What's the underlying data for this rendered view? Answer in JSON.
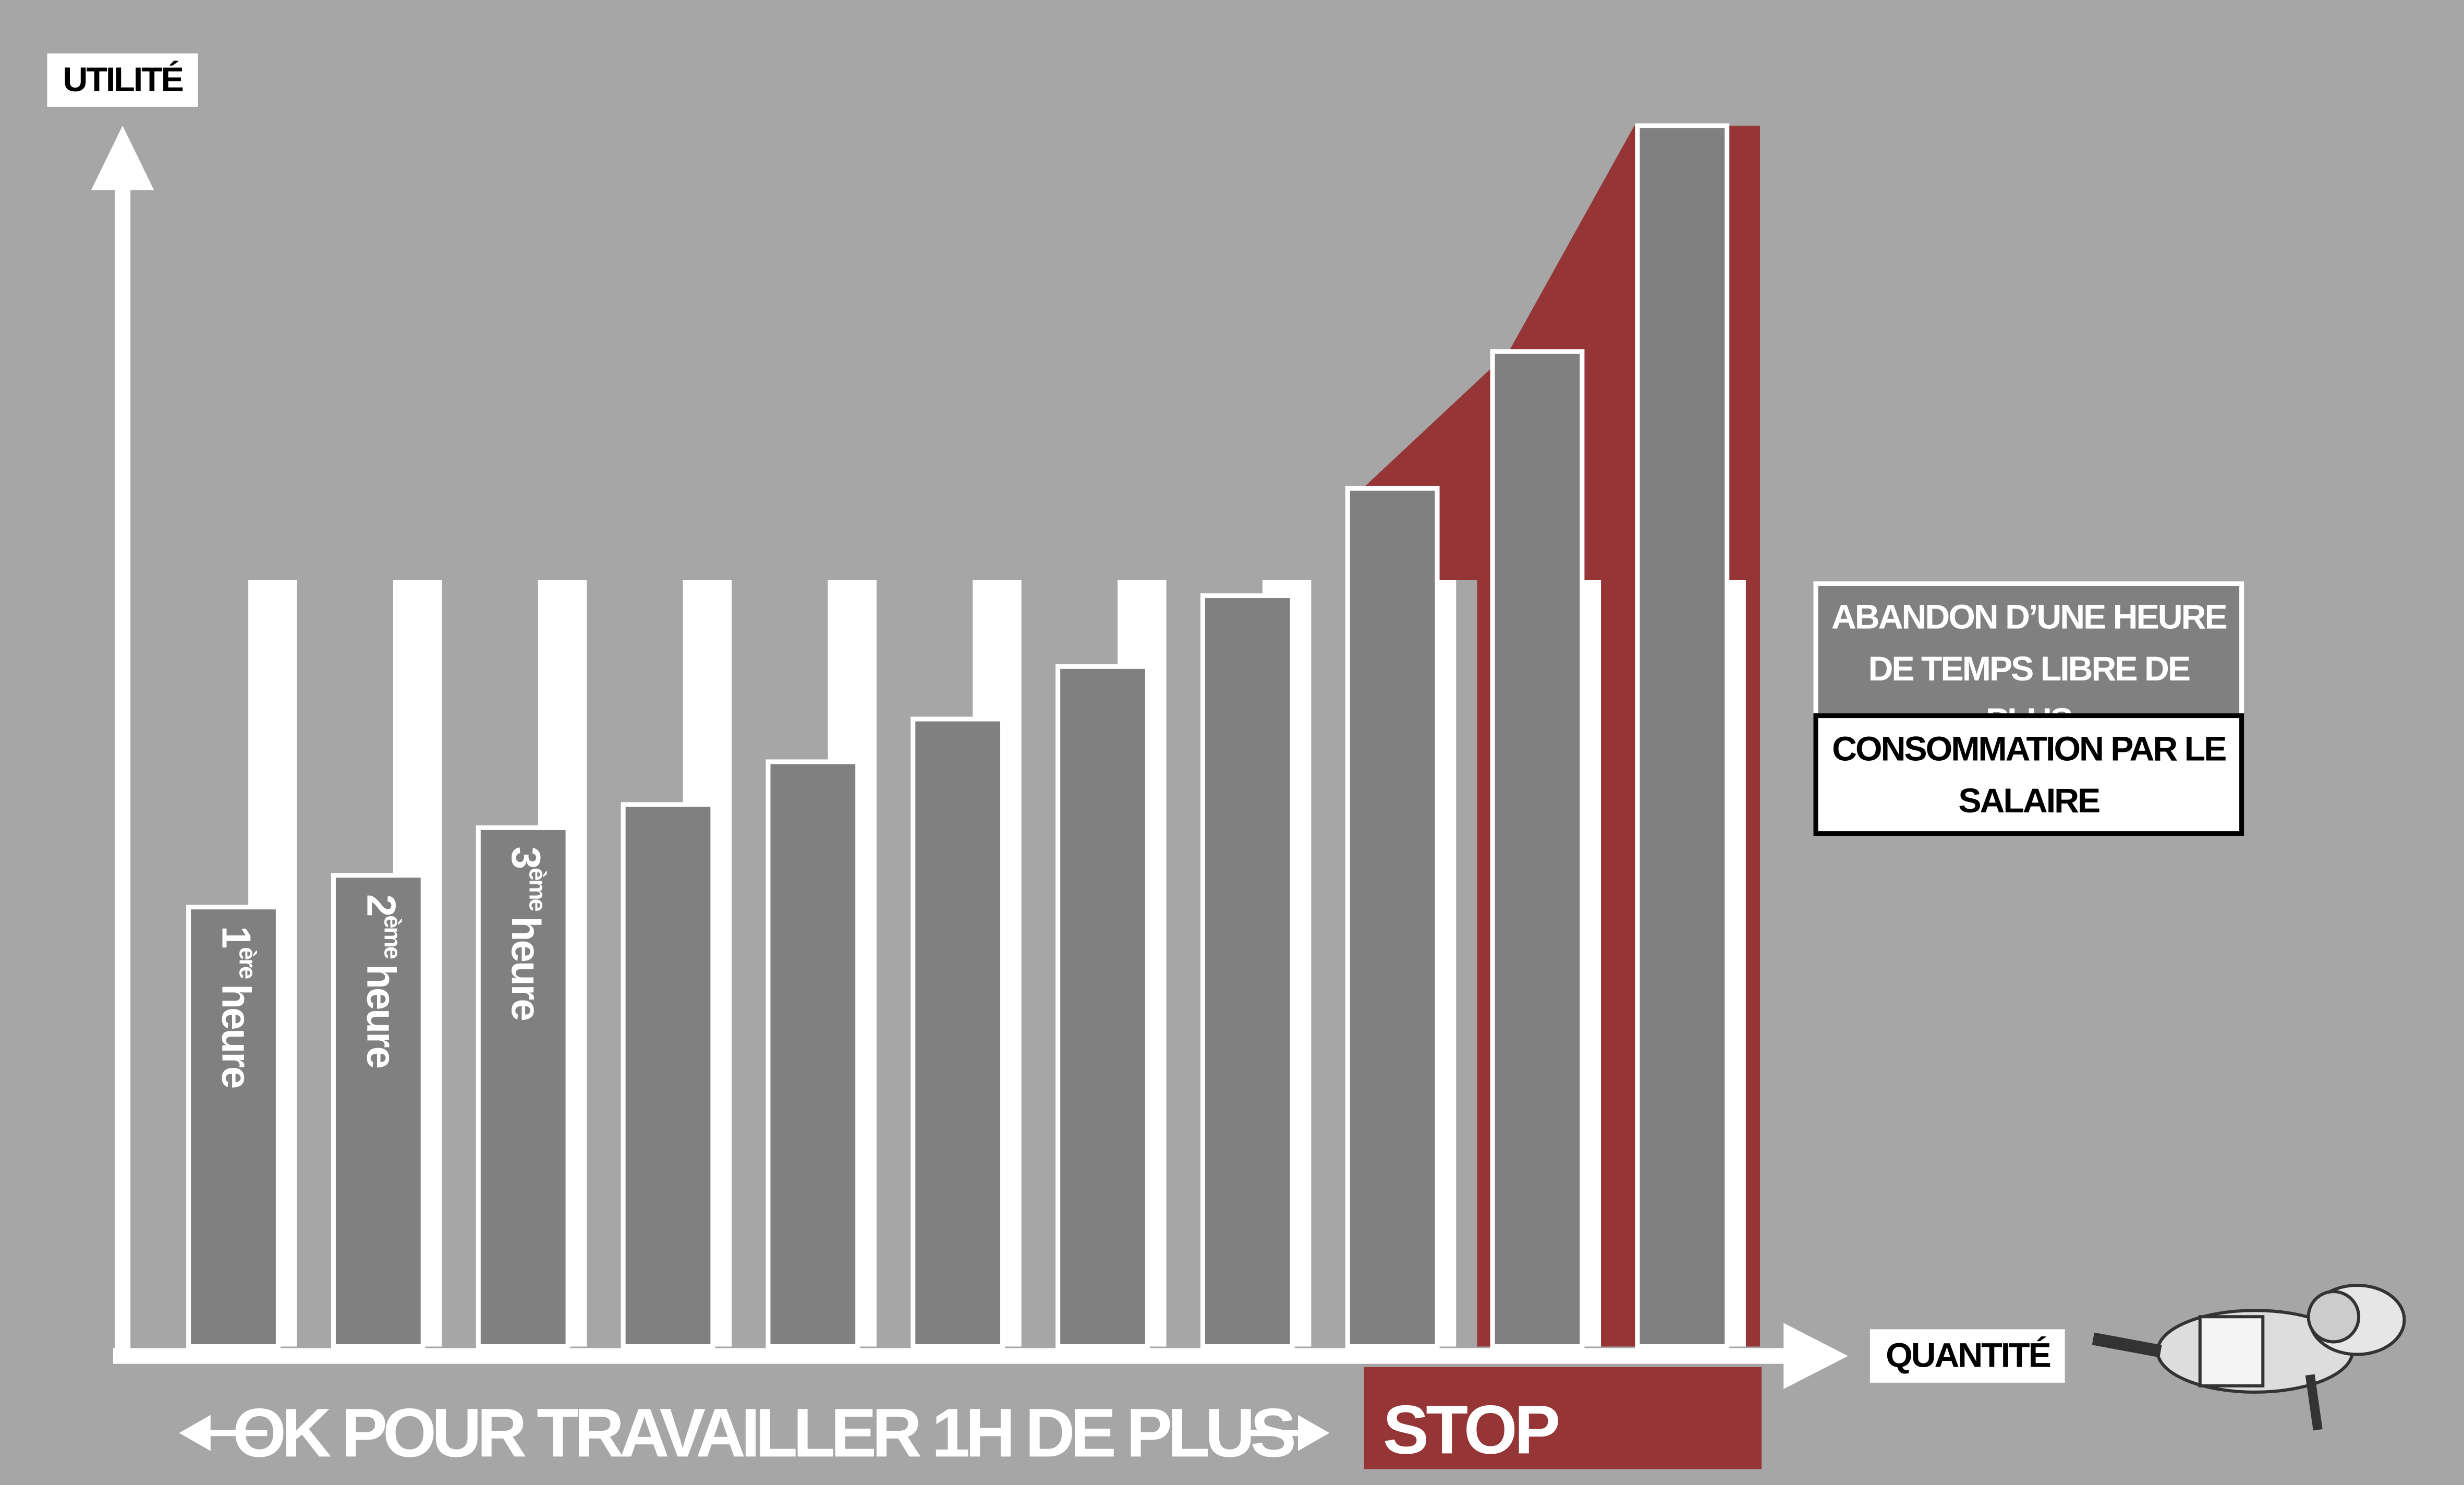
{
  "chart_data": {
    "type": "bar",
    "y_label": "UTILITÉ",
    "x_label": "QUANTITÉ",
    "categories": [
      {
        "num": "1",
        "sup": "ère",
        "word": "heure"
      },
      {
        "num": "2",
        "sup": "ème",
        "word": "heure"
      },
      {
        "num": "3",
        "sup": "ème",
        "word": "heure"
      },
      null,
      null,
      null,
      null,
      null,
      null,
      null,
      null
    ],
    "ylim": [
      0,
      100
    ],
    "series": [
      {
        "name": "ABANDON D’UNE HEURE DE TEMPS LIBRE DE PLUS",
        "color": "#ffffff",
        "values": [
          62.8,
          62.8,
          62.8,
          62.8,
          62.8,
          62.8,
          62.8,
          62.8,
          62.8,
          62.8,
          62.8
        ]
      },
      {
        "name": "CONSOMMATION PAR LE SALAIRE",
        "color": "#808080",
        "values": [
          36,
          38.6,
          42.5,
          44.4,
          47.9,
          51.4,
          55.7,
          61.5,
          70.3,
          81.5,
          100
        ]
      }
    ],
    "annotations": {
      "ok": "OK POUR TRAVAILLER 1H DE PLUS",
      "stop": "STOP"
    }
  }
}
